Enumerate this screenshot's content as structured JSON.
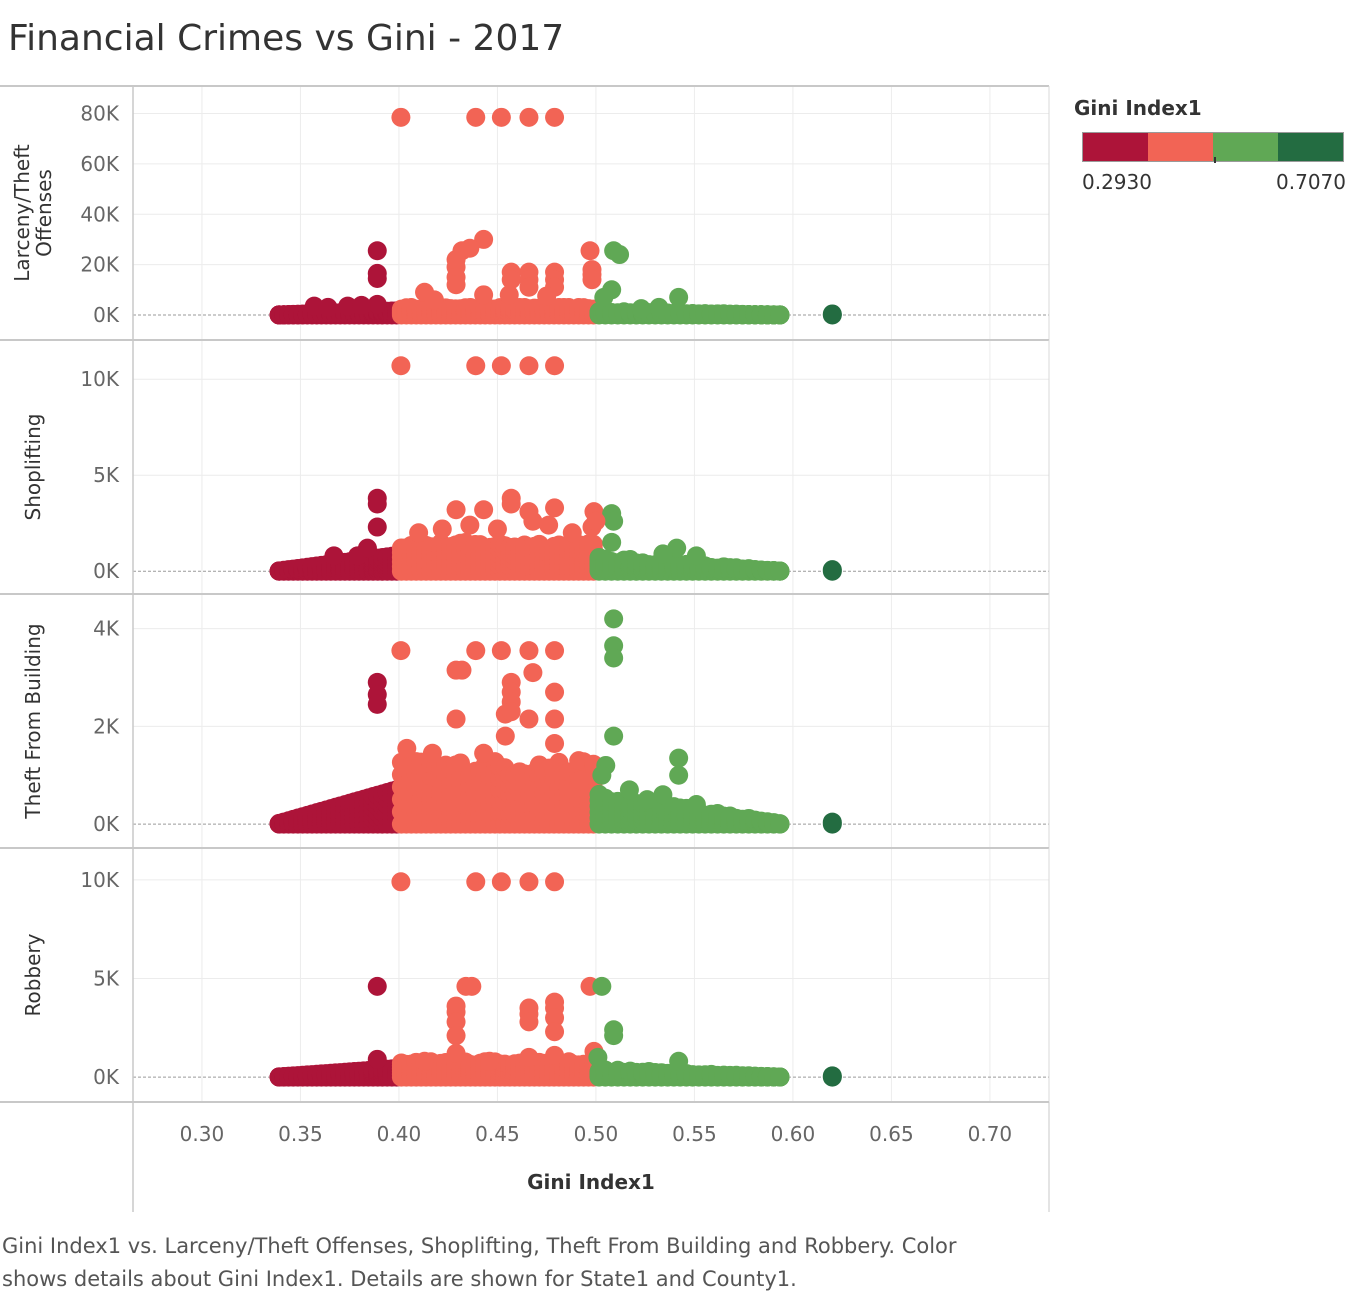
{
  "title": "Financial Crimes vs Gini - 2017",
  "legend": {
    "title": "Gini Index1",
    "min_label": "0.2930",
    "max_label": "0.7070",
    "colors": [
      "#ad1439",
      "#f26455",
      "#60a855",
      "#236c41"
    ]
  },
  "caption": {
    "line1": "Gini Index1 vs. Larceny/Theft Offenses, Shoplifting, Theft From Building and Robbery.  Color",
    "line2": "shows details about Gini Index1.  Details are shown for State1 and County1."
  },
  "chart_data": {
    "type": "scatter",
    "xlabel": "Gini Index1",
    "xlim": [
      0.265,
      0.73
    ],
    "x_ticks": [
      0.3,
      0.35,
      0.4,
      0.45,
      0.5,
      0.55,
      0.6,
      0.65,
      0.7
    ],
    "x_tick_labels": [
      "0.30",
      "0.35",
      "0.40",
      "0.45",
      "0.50",
      "0.55",
      "0.60",
      "0.65",
      "0.70"
    ],
    "color_field": "Gini Index1",
    "color_range": [
      0.293,
      0.707
    ],
    "color_bins": [
      {
        "max": 0.4,
        "color": "#ad1439"
      },
      {
        "max": 0.5,
        "color": "#f26455"
      },
      {
        "max": 0.6,
        "color": "#60a855"
      },
      {
        "max": 0.707,
        "color": "#236c41"
      }
    ],
    "panels": [
      {
        "ylabel": [
          "Larceny/Theft",
          "Offenses"
        ],
        "ylim": [
          -2000,
          83000
        ],
        "y_ticks": [
          0,
          20000,
          40000,
          60000,
          80000
        ],
        "y_tick_labels": [
          "0K",
          "20K",
          "40K",
          "60K",
          "80K"
        ],
        "cluster_max": 3000,
        "points": [
          [
            0.401,
            78500
          ],
          [
            0.439,
            78500
          ],
          [
            0.452,
            78500
          ],
          [
            0.466,
            78500
          ],
          [
            0.479,
            78500
          ],
          [
            0.389,
            25500
          ],
          [
            0.389,
            16500
          ],
          [
            0.389,
            14500
          ],
          [
            0.389,
            4200
          ],
          [
            0.443,
            30000
          ],
          [
            0.432,
            25500
          ],
          [
            0.436,
            26500
          ],
          [
            0.429,
            22000
          ],
          [
            0.429,
            19000
          ],
          [
            0.429,
            15000
          ],
          [
            0.429,
            12000
          ],
          [
            0.457,
            17000
          ],
          [
            0.457,
            14000
          ],
          [
            0.466,
            17000
          ],
          [
            0.466,
            14000
          ],
          [
            0.466,
            11000
          ],
          [
            0.479,
            17000
          ],
          [
            0.479,
            14000
          ],
          [
            0.479,
            11000
          ],
          [
            0.497,
            25500
          ],
          [
            0.413,
            9000
          ],
          [
            0.418,
            6000
          ],
          [
            0.443,
            8000
          ],
          [
            0.456,
            8000
          ],
          [
            0.475,
            7500
          ],
          [
            0.509,
            25500
          ],
          [
            0.512,
            24000
          ],
          [
            0.498,
            18000
          ],
          [
            0.498,
            16000
          ],
          [
            0.498,
            14000
          ],
          [
            0.508,
            10000
          ],
          [
            0.504,
            7000
          ],
          [
            0.542,
            7000
          ],
          [
            0.532,
            3000
          ],
          [
            0.523,
            2500
          ],
          [
            0.357,
            3500
          ],
          [
            0.364,
            3000
          ],
          [
            0.374,
            3500
          ],
          [
            0.381,
            3800
          ],
          [
            0.62,
            400
          ],
          [
            0.62,
            0
          ]
        ],
        "clusters": [
          {
            "x0": 0.338,
            "x1": 0.4,
            "count": 26
          },
          {
            "x0": 0.4,
            "x1": 0.5,
            "count": 40
          },
          {
            "x0": 0.5,
            "x1": 0.595,
            "count": 30
          }
        ]
      },
      {
        "ylabel": [
          "Shoplifting"
        ],
        "ylim": [
          -250,
          11000
        ],
        "y_ticks": [
          0,
          5000,
          10000
        ],
        "y_tick_labels": [
          "0K",
          "5K",
          "10K"
        ],
        "cluster_max": 1500,
        "points": [
          [
            0.401,
            10700
          ],
          [
            0.439,
            10700
          ],
          [
            0.452,
            10700
          ],
          [
            0.466,
            10700
          ],
          [
            0.479,
            10700
          ],
          [
            0.389,
            3800
          ],
          [
            0.389,
            3500
          ],
          [
            0.389,
            2300
          ],
          [
            0.429,
            3200
          ],
          [
            0.443,
            3200
          ],
          [
            0.457,
            3800
          ],
          [
            0.457,
            3500
          ],
          [
            0.466,
            3100
          ],
          [
            0.479,
            3300
          ],
          [
            0.41,
            2000
          ],
          [
            0.422,
            2200
          ],
          [
            0.436,
            2400
          ],
          [
            0.45,
            2200
          ],
          [
            0.468,
            2600
          ],
          [
            0.476,
            2400
          ],
          [
            0.488,
            2000
          ],
          [
            0.498,
            2300
          ],
          [
            0.499,
            3100
          ],
          [
            0.508,
            3000
          ],
          [
            0.509,
            2600
          ],
          [
            0.5,
            2600
          ],
          [
            0.508,
            1500
          ],
          [
            0.541,
            1200
          ],
          [
            0.534,
            900
          ],
          [
            0.551,
            800
          ],
          [
            0.367,
            800
          ],
          [
            0.379,
            800
          ],
          [
            0.384,
            1200
          ],
          [
            0.62,
            80
          ],
          [
            0.62,
            0
          ]
        ],
        "clusters": [
          {
            "x0": 0.338,
            "x1": 0.4,
            "count": 26
          },
          {
            "x0": 0.4,
            "x1": 0.5,
            "count": 40
          },
          {
            "x0": 0.5,
            "x1": 0.595,
            "count": 30
          }
        ]
      },
      {
        "ylabel": [
          "Theft From Building"
        ],
        "ylim": [
          -80,
          4300
        ],
        "y_ticks": [
          0,
          2000,
          4000
        ],
        "y_tick_labels": [
          "0K",
          "2K",
          "4K"
        ],
        "cluster_max": 1300,
        "points": [
          [
            0.401,
            3550
          ],
          [
            0.439,
            3550
          ],
          [
            0.452,
            3550
          ],
          [
            0.466,
            3550
          ],
          [
            0.479,
            3550
          ],
          [
            0.389,
            2900
          ],
          [
            0.389,
            2650
          ],
          [
            0.389,
            2450
          ],
          [
            0.429,
            3150
          ],
          [
            0.432,
            3150
          ],
          [
            0.468,
            3100
          ],
          [
            0.457,
            2900
          ],
          [
            0.457,
            2700
          ],
          [
            0.457,
            2500
          ],
          [
            0.479,
            2700
          ],
          [
            0.429,
            2150
          ],
          [
            0.454,
            2250
          ],
          [
            0.457,
            2300
          ],
          [
            0.466,
            2150
          ],
          [
            0.479,
            2150
          ],
          [
            0.479,
            1650
          ],
          [
            0.454,
            1800
          ],
          [
            0.404,
            1550
          ],
          [
            0.417,
            1450
          ],
          [
            0.443,
            1450
          ],
          [
            0.509,
            4200
          ],
          [
            0.509,
            3650
          ],
          [
            0.509,
            3400
          ],
          [
            0.509,
            1800
          ],
          [
            0.499,
            1200
          ],
          [
            0.505,
            1200
          ],
          [
            0.503,
            1000
          ],
          [
            0.492,
            900
          ],
          [
            0.542,
            1350
          ],
          [
            0.542,
            1000
          ],
          [
            0.534,
            600
          ],
          [
            0.526,
            500
          ],
          [
            0.517,
            700
          ],
          [
            0.551,
            400
          ],
          [
            0.62,
            40
          ],
          [
            0.62,
            0
          ]
        ],
        "clusters": [
          {
            "x0": 0.338,
            "x1": 0.4,
            "count": 26
          },
          {
            "x0": 0.4,
            "x1": 0.5,
            "count": 40
          },
          {
            "x0": 0.5,
            "x1": 0.595,
            "count": 30
          }
        ]
      },
      {
        "ylabel": [
          "Robbery"
        ],
        "ylim": [
          -250,
          10600
        ],
        "y_ticks": [
          0,
          5000,
          10000
        ],
        "y_tick_labels": [
          "0K",
          "5K",
          "10K"
        ],
        "cluster_max": 800,
        "points": [
          [
            0.401,
            9900
          ],
          [
            0.439,
            9900
          ],
          [
            0.452,
            9900
          ],
          [
            0.466,
            9900
          ],
          [
            0.479,
            9900
          ],
          [
            0.389,
            4600
          ],
          [
            0.389,
            900
          ],
          [
            0.434,
            4600
          ],
          [
            0.437,
            4600
          ],
          [
            0.497,
            4600
          ],
          [
            0.503,
            4600
          ],
          [
            0.429,
            3600
          ],
          [
            0.429,
            3300
          ],
          [
            0.429,
            2800
          ],
          [
            0.429,
            2100
          ],
          [
            0.429,
            1200
          ],
          [
            0.466,
            3500
          ],
          [
            0.466,
            3200
          ],
          [
            0.466,
            2800
          ],
          [
            0.479,
            3800
          ],
          [
            0.479,
            3500
          ],
          [
            0.479,
            3000
          ],
          [
            0.479,
            2300
          ],
          [
            0.479,
            1100
          ],
          [
            0.509,
            2400
          ],
          [
            0.509,
            2100
          ],
          [
            0.499,
            1300
          ],
          [
            0.501,
            1000
          ],
          [
            0.413,
            800
          ],
          [
            0.446,
            800
          ],
          [
            0.466,
            1000
          ],
          [
            0.542,
            800
          ],
          [
            0.62,
            60
          ],
          [
            0.62,
            0
          ]
        ],
        "clusters": [
          {
            "x0": 0.338,
            "x1": 0.4,
            "count": 26
          },
          {
            "x0": 0.4,
            "x1": 0.5,
            "count": 40
          },
          {
            "x0": 0.5,
            "x1": 0.595,
            "count": 30
          }
        ]
      }
    ]
  }
}
